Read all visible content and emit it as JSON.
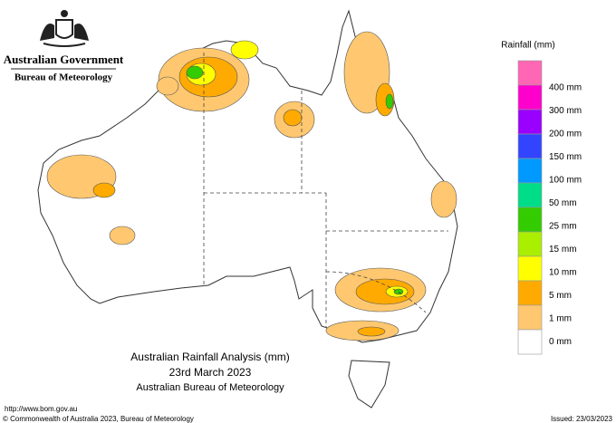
{
  "header": {
    "government": "Australian Government",
    "agency": "Bureau of Meteorology"
  },
  "legend": {
    "title": "Rainfall (mm)",
    "items": [
      {
        "label": "400 mm",
        "color": "#ff66b3"
      },
      {
        "label": "300 mm",
        "color": "#ff00cc"
      },
      {
        "label": "200 mm",
        "color": "#9900ff"
      },
      {
        "label": "150 mm",
        "color": "#3344ff"
      },
      {
        "label": "100 mm",
        "color": "#0099ff"
      },
      {
        "label": "50 mm",
        "color": "#00dd88"
      },
      {
        "label": "25 mm",
        "color": "#33cc00"
      },
      {
        "label": "15 mm",
        "color": "#aaee00"
      },
      {
        "label": "10 mm",
        "color": "#ffff00"
      },
      {
        "label": "5 mm",
        "color": "#ffaa00"
      },
      {
        "label": "1 mm",
        "color": "#ffc870"
      },
      {
        "label": "0 mm",
        "color": "#ffffff"
      }
    ]
  },
  "map_title": {
    "line1": "Australian Rainfall Analysis (mm)",
    "line2": "23rd March 2023",
    "line3": "Australian Bureau of Meteorology"
  },
  "footer": {
    "url": "http://www.bom.gov.au",
    "copyright": "© Commonwealth of Australia 2023, Bureau of Meteorology",
    "issued": "Issued: 23/03/2023"
  }
}
